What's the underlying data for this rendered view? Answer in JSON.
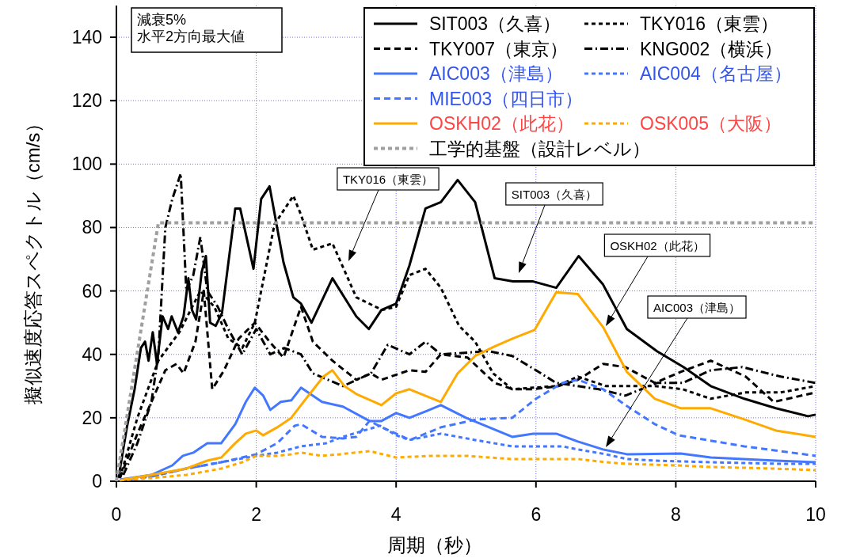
{
  "chart_data": {
    "type": "line",
    "xlabel": "周期（秒）",
    "ylabel": "擬似速度応答スペクトル（cm/s）",
    "xlim": [
      0,
      10
    ],
    "ylim": [
      0,
      150
    ],
    "xticks": [
      0,
      2,
      4,
      6,
      8,
      10
    ],
    "yticks": [
      0,
      20,
      40,
      60,
      80,
      100,
      120,
      140
    ],
    "grid": true,
    "legend": "top right",
    "annotations": [
      "減衰5%\n水平2方向最大値",
      "TKY016（東雲）",
      "SIT003（久喜）",
      "OSKH02（此花）",
      "AIC003（津島）"
    ],
    "series": [
      {
        "name": "SIT003（久喜）",
        "color": "#000000",
        "line_style": "solid",
        "x": [
          0.03,
          0.15,
          0.26,
          0.35,
          0.41,
          0.46,
          0.52,
          0.58,
          0.66,
          0.74,
          0.79,
          0.88,
          0.96,
          1.03,
          1.08,
          1.14,
          1.22,
          1.28,
          1.34,
          1.42,
          1.51,
          1.7,
          1.77,
          1.96,
          2.07,
          2.19,
          2.39,
          2.53,
          2.64,
          2.79,
          3.09,
          3.43,
          3.61,
          3.79,
          4.0,
          4.19,
          4.42,
          4.64,
          4.88,
          5.13,
          5.41,
          5.67,
          5.96,
          6.29,
          6.61,
          6.96,
          7.3,
          7.73,
          8.11,
          8.5,
          8.98,
          9.43,
          9.89,
          10
        ],
        "values": [
          1,
          17,
          29,
          42,
          44,
          38,
          47,
          37,
          52,
          48,
          52,
          47,
          52,
          64,
          54,
          51,
          66,
          71,
          50,
          49,
          53,
          86,
          86,
          67,
          89,
          93,
          69,
          58,
          56,
          50,
          64,
          52,
          48,
          54,
          56,
          68,
          86,
          88,
          95,
          88,
          64,
          63,
          63,
          61,
          71,
          62,
          48,
          41,
          36,
          30,
          26,
          23,
          20.5,
          21
        ]
      },
      {
        "name": "TKY016（東雲）",
        "color": "#000000",
        "line_style": "dotted",
        "x": [
          0.05,
          0.3,
          0.6,
          0.9,
          1.2,
          1.4,
          1.6,
          1.8,
          1.98,
          2.26,
          2.53,
          2.64,
          2.81,
          3.09,
          3.43,
          3.8,
          4.0,
          4.19,
          4.42,
          4.64,
          4.9,
          5.13,
          5.39,
          5.66,
          5.96,
          6.3,
          6.6,
          7.0,
          7.3,
          7.7,
          8.1,
          8.5,
          9.0,
          9.5,
          10
        ],
        "values": [
          1,
          20,
          38,
          47,
          60,
          55,
          45,
          42,
          50,
          81,
          90,
          84,
          73,
          75,
          58,
          54,
          55,
          65,
          67,
          61,
          49,
          44,
          34,
          29,
          29.5,
          30,
          33,
          30,
          30,
          30,
          29,
          26,
          28,
          28,
          30
        ]
      },
      {
        "name": "TKY007（東京）",
        "color": "#000000",
        "line_style": "dashed",
        "x": [
          0.05,
          0.3,
          0.5,
          0.7,
          0.86,
          0.96,
          1.13,
          1.25,
          1.37,
          1.54,
          1.75,
          1.98,
          2.19,
          2.39,
          2.64,
          2.81,
          3.09,
          3.43,
          3.64,
          3.79,
          4.19,
          4.42,
          4.64,
          5.02,
          5.41,
          5.67,
          5.96,
          6.32,
          6.6,
          6.96,
          7.28,
          7.7,
          8.07,
          8.5,
          9.0,
          9.4,
          10
        ],
        "values": [
          1,
          15,
          25,
          35,
          37,
          34,
          44,
          60,
          29,
          35,
          45,
          50,
          44,
          39,
          55,
          44,
          38,
          32,
          34,
          32,
          35,
          34.5,
          40,
          39,
          31,
          29,
          29,
          30,
          32,
          37,
          36,
          31,
          34.5,
          38,
          33,
          25,
          28
        ]
      },
      {
        "name": "KNG002（横浜）",
        "color": "#000000",
        "line_style": "dashdot",
        "x": [
          0.1,
          0.3,
          0.5,
          0.6,
          0.7,
          0.8,
          0.92,
          1.0,
          1.1,
          1.2,
          1.3,
          1.45,
          1.6,
          1.8,
          2.0,
          2.2,
          2.4,
          2.64,
          2.81,
          3.24,
          3.64,
          3.88,
          4.19,
          4.42,
          4.64,
          5.32,
          5.66,
          6.0,
          6.29,
          6.9,
          7.28,
          7.73,
          8.1,
          8.5,
          8.95,
          9.5,
          10
        ],
        "values": [
          2,
          12,
          25,
          40,
          80,
          89,
          97,
          60,
          65,
          77,
          60,
          55,
          48,
          40,
          48,
          40,
          42,
          40,
          34,
          30,
          34,
          43,
          40,
          44,
          40,
          41,
          39.5,
          35,
          31,
          29,
          27,
          31,
          31,
          35,
          36,
          33,
          31
        ]
      },
      {
        "name": "AIC003（津島）",
        "color": "#4477ff",
        "line_style": "solid",
        "x": [
          0.05,
          0.5,
          0.8,
          0.95,
          1.1,
          1.3,
          1.5,
          1.7,
          1.85,
          1.98,
          2.1,
          2.2,
          2.35,
          2.5,
          2.64,
          2.94,
          3.24,
          3.62,
          3.79,
          4.0,
          4.19,
          4.42,
          4.64,
          5.0,
          5.66,
          5.96,
          6.29,
          6.6,
          6.96,
          7.3,
          8.07,
          8.5,
          9.43,
          10
        ],
        "values": [
          0.5,
          2,
          5,
          8,
          9,
          12,
          12,
          18,
          25,
          29.5,
          27,
          22.5,
          25,
          25.5,
          29.5,
          25,
          23.5,
          19,
          19,
          21.5,
          20,
          22,
          24,
          20,
          14,
          15,
          15,
          12.5,
          10,
          8.5,
          8.7,
          7.5,
          6.5,
          6
        ]
      },
      {
        "name": "AIC004（名古屋）",
        "color": "#4477ff",
        "line_style": "dotted",
        "x": [
          0.05,
          0.5,
          1.0,
          1.5,
          2.0,
          2.3,
          2.64,
          3.0,
          3.24,
          3.77,
          4.0,
          4.19,
          4.64,
          5.13,
          5.66,
          6.38,
          6.6,
          7.0,
          7.3,
          7.7,
          8.5,
          9.5,
          10
        ],
        "values": [
          0.3,
          1.5,
          4,
          6,
          8,
          9,
          11,
          12,
          14,
          17.5,
          14.5,
          13,
          15,
          13,
          11,
          11,
          10,
          8.5,
          7,
          6.5,
          6,
          5.5,
          5.5
        ]
      },
      {
        "name": "MIE003（四日市）",
        "color": "#4477ff",
        "line_style": "dashed",
        "x": [
          0.05,
          0.5,
          1.0,
          1.5,
          2.0,
          2.3,
          2.55,
          2.64,
          2.94,
          3.24,
          3.43,
          3.62,
          3.8,
          4.2,
          4.64,
          5.15,
          5.66,
          6.0,
          6.38,
          6.6,
          6.96,
          7.28,
          7.7,
          8.04,
          8.98,
          10
        ],
        "values": [
          0.3,
          1.5,
          4,
          6,
          8.5,
          12,
          17.5,
          18,
          14,
          13.5,
          14,
          19,
          17,
          13,
          17,
          19.5,
          20,
          26,
          31,
          32,
          29,
          24,
          18,
          14.5,
          11,
          8
        ]
      },
      {
        "name": "OSKH02（此花）",
        "color": "#ffaa00",
        "line_style": "solid",
        "x": [
          0.05,
          0.5,
          1.0,
          1.3,
          1.5,
          1.7,
          1.85,
          2.0,
          2.1,
          2.3,
          2.5,
          2.64,
          2.96,
          3.09,
          3.26,
          3.43,
          3.79,
          4.0,
          4.19,
          4.64,
          4.88,
          5.13,
          5.41,
          5.67,
          5.98,
          6.29,
          6.6,
          6.96,
          7.3,
          7.7,
          8.07,
          8.5,
          8.98,
          9.43,
          10
        ],
        "values": [
          0.3,
          2,
          4,
          6.5,
          7.5,
          12,
          15,
          16,
          14.5,
          17,
          20,
          24,
          33,
          35,
          30,
          27.5,
          24,
          27.7,
          29,
          25,
          34,
          39.5,
          42.5,
          45,
          47.7,
          59.6,
          59,
          48.6,
          34.5,
          26,
          23,
          23,
          19.5,
          16,
          14
        ]
      },
      {
        "name": "OSK005（大阪）",
        "color": "#ffaa00",
        "line_style": "dotted",
        "x": [
          0.05,
          0.5,
          1.0,
          1.5,
          1.8,
          2.0,
          2.3,
          2.5,
          2.64,
          2.94,
          3.2,
          3.62,
          4.0,
          4.5,
          5.0,
          5.66,
          6.3,
          6.6,
          7.0,
          7.3,
          8.0,
          8.5,
          9.4,
          10
        ],
        "values": [
          0.3,
          1,
          2,
          4,
          6,
          8,
          8,
          8.5,
          9,
          8,
          8.5,
          9.5,
          7.5,
          8,
          8,
          7,
          7,
          7,
          6,
          5.5,
          5,
          4.5,
          4,
          3.5
        ]
      },
      {
        "name": "工学的基盤（設計レベル）",
        "color": "#a0a0a0",
        "line_style": "dotted",
        "x": [
          0,
          0.6,
          10
        ],
        "values": [
          0,
          81.5,
          81.5
        ]
      }
    ]
  }
}
